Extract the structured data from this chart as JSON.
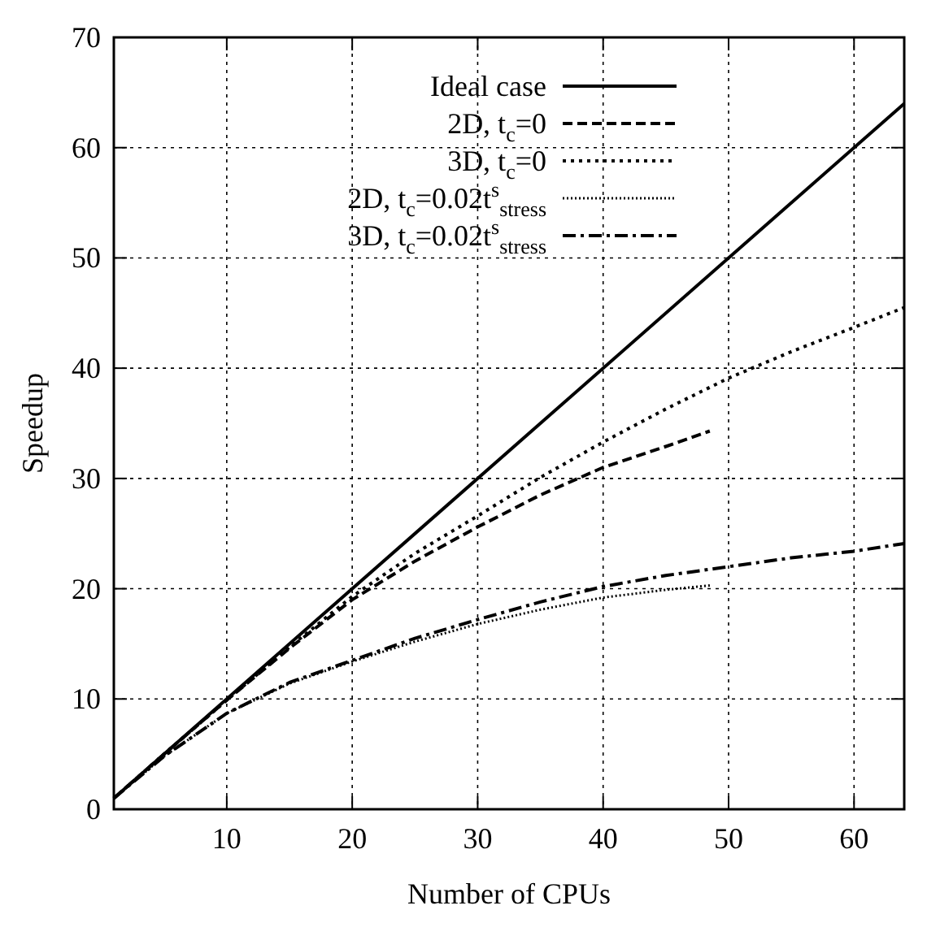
{
  "chart_data": {
    "type": "line",
    "xlabel": "Number of CPUs",
    "ylabel": "Speedup",
    "xlim": [
      1,
      64
    ],
    "ylim": [
      0,
      70
    ],
    "xticks": [
      10,
      20,
      30,
      40,
      50,
      60
    ],
    "yticks": [
      0,
      10,
      20,
      30,
      40,
      50,
      60,
      70
    ],
    "grid": true,
    "legend": "top right",
    "series": [
      {
        "name": "Ideal case",
        "color": "#000000",
        "line_style": "solid",
        "x": [
          1,
          64
        ],
        "values": [
          1,
          64
        ]
      },
      {
        "name": "2D, t$_{c}$=0",
        "color": "#000000",
        "line_style": "dashed",
        "x": [
          1,
          5,
          10,
          15,
          20,
          25,
          30,
          35,
          40,
          45,
          48.5
        ],
        "values": [
          1,
          5,
          9.9,
          14.6,
          19,
          22.5,
          25.6,
          28.5,
          31,
          32.9,
          34.3
        ]
      },
      {
        "name": "3D, t$_{c}$=0",
        "color": "#000000",
        "line_style": "dotted",
        "x": [
          1,
          5,
          10,
          15,
          20,
          25,
          30,
          35,
          40,
          45,
          50,
          55,
          60,
          64
        ],
        "values": [
          1,
          5,
          9.9,
          14.7,
          19.3,
          23.2,
          26.6,
          30.1,
          33.3,
          36.3,
          39.1,
          41.5,
          43.7,
          45.5
        ]
      },
      {
        "name": "2D, t$_{c}$=0.02t$^{s}$$_{stress}$",
        "color": "#000000",
        "line_style": "dotted",
        "x": [
          1,
          5,
          10,
          15,
          20,
          25,
          30,
          35,
          40,
          45,
          48.5
        ],
        "values": [
          1,
          4.8,
          8.7,
          11.4,
          13.4,
          15.2,
          16.8,
          18.1,
          19.2,
          19.9,
          20.3
        ]
      },
      {
        "name": "3D, t$_{c}$=0.02t$^{s}$$_{stress}$",
        "color": "#000000",
        "line_style": "dashdot",
        "x": [
          1,
          5,
          10,
          15,
          20,
          25,
          30,
          35,
          40,
          45,
          50,
          55,
          60,
          64
        ],
        "values": [
          1,
          4.8,
          8.7,
          11.5,
          13.5,
          15.5,
          17.2,
          18.8,
          20.2,
          21.2,
          22,
          22.8,
          23.4,
          24.1
        ]
      }
    ]
  }
}
